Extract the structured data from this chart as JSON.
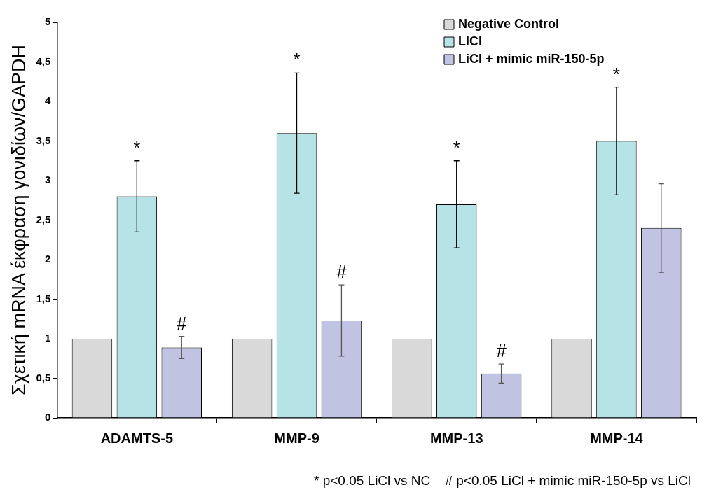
{
  "chart_data": {
    "type": "bar",
    "ylabel": "Σχετική mRNA έκφραση γονιδίων/GAPDH",
    "categories": [
      "ADAMTS-5",
      "MMP-9",
      "MMP-13",
      "MMP-14"
    ],
    "series": [
      {
        "name": "Negative Control",
        "color": "#d9d9d9",
        "values": [
          1,
          1,
          1,
          1
        ]
      },
      {
        "name": "LiCl",
        "color": "#b6e3e6",
        "values": [
          2.8,
          3.6,
          2.7,
          3.5
        ],
        "errors": [
          0.45,
          0.76,
          0.55,
          0.68
        ]
      },
      {
        "name": "LiCl + mimic miR-150-5p",
        "color": "#c1c3e2",
        "values": [
          0.89,
          1.23,
          0.56,
          2.4
        ],
        "errors": [
          0.14,
          0.45,
          0.12,
          0.56
        ]
      }
    ],
    "ylim": [
      0,
      5
    ],
    "yticks": [
      0,
      {
        "value": 0.5,
        "label": "0,5"
      },
      1,
      {
        "value": 1.5,
        "label": "1,5"
      },
      2,
      {
        "value": 2.5,
        "label": "2,5"
      },
      3,
      {
        "value": 3.5,
        "label": "3,5"
      },
      4,
      {
        "value": 4.5,
        "label": "4,5"
      },
      5
    ],
    "grid": false,
    "legend": "top right",
    "annotations": [
      {
        "text": "*",
        "x": "ADAMTS-5",
        "y": 3.25
      },
      {
        "text": "*",
        "x": "MMP-9",
        "y": 4.36
      },
      {
        "text": "*",
        "x": "MMP-13",
        "y": 3.25
      },
      {
        "text": "*",
        "x": "MMP-14",
        "y": 4.18
      },
      "#",
      "#",
      "#",
      "* p<0.05 LiCl vs NC    # p<0.05 LiCl + mimic miR-150-5p vs LiCl"
    ]
  }
}
